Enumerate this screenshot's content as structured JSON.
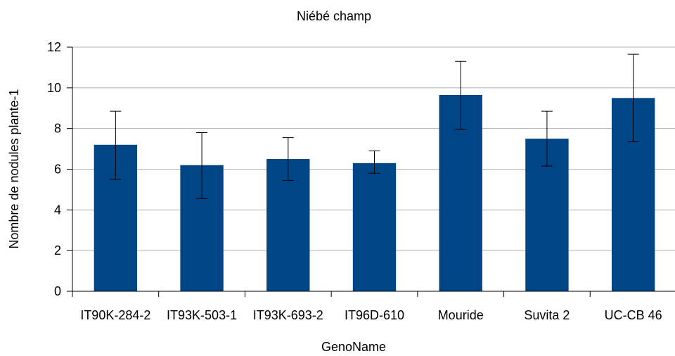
{
  "chart_data": {
    "type": "bar",
    "title": "Niébé champ",
    "xlabel": "GenoName",
    "ylabel": "Nombre de nodules plante-1",
    "categories": [
      "IT90K-284-2",
      "IT93K-503-1",
      "IT93K-693-2",
      "IT96D-610",
      "Mouride",
      "Suvita 2",
      "UC-CB 46"
    ],
    "values": [
      7.2,
      6.2,
      6.5,
      6.3,
      9.65,
      7.5,
      9.5
    ],
    "error_low": [
      5.5,
      4.55,
      5.45,
      5.8,
      7.95,
      6.15,
      7.35
    ],
    "error_high": [
      8.85,
      7.8,
      7.55,
      6.9,
      11.3,
      8.85,
      11.65
    ],
    "ylim": [
      0,
      12
    ],
    "yticks": [
      0,
      2,
      4,
      6,
      8,
      10,
      12
    ],
    "grid": true,
    "legend": "none",
    "colors": {
      "bar": "#004586",
      "grid": "#b3b3b3",
      "axis": "#000000",
      "error_bar": "#000000"
    }
  }
}
